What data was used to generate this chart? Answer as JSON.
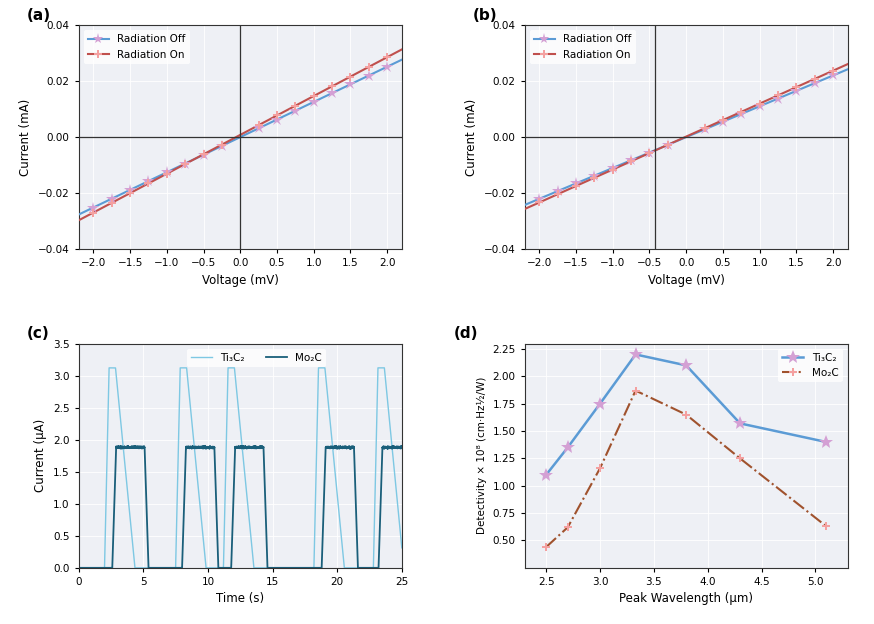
{
  "panel_a": {
    "title": "(a)",
    "xlabel": "Voltage (mV)",
    "ylabel": "Current (mA)",
    "xlim": [
      -2.2,
      2.2
    ],
    "ylim": [
      -0.04,
      0.04
    ],
    "xticks": [
      -2.0,
      -1.5,
      -1.0,
      -0.5,
      0.0,
      0.5,
      1.0,
      1.5,
      2.0
    ],
    "yticks": [
      -0.04,
      -0.02,
      0.0,
      0.02,
      0.04
    ],
    "off_slope": 0.01255,
    "off_intercept": 0.0,
    "on_slope": 0.01385,
    "on_intercept": 0.0008,
    "marker_x": [
      -2.0,
      -1.75,
      -1.5,
      -1.25,
      -1.0,
      -0.75,
      -0.5,
      -0.25,
      0.25,
      0.5,
      0.75,
      1.0,
      1.25,
      1.5,
      1.75,
      2.0
    ],
    "vline_x": 0.0,
    "hline_y": 0.0,
    "color_off": "#5b9bd5",
    "color_on": "#c0504d",
    "marker_color_off": "#d4a0d4",
    "marker_color_on": "#f4a0a0"
  },
  "panel_b": {
    "title": "(b)",
    "xlabel": "Voltage (mV)",
    "ylabel": "Current (mA)",
    "xlim": [
      -2.2,
      2.2
    ],
    "ylim": [
      -0.04,
      0.04
    ],
    "xticks": [
      -2.0,
      -1.5,
      -1.0,
      -0.5,
      0.0,
      0.5,
      1.0,
      1.5,
      2.0
    ],
    "yticks": [
      -0.04,
      -0.02,
      0.0,
      0.02,
      0.04
    ],
    "off_slope": 0.011,
    "off_intercept": 0.0,
    "on_slope": 0.01175,
    "on_intercept": 0.0002,
    "marker_x": [
      -2.0,
      -1.75,
      -1.5,
      -1.25,
      -1.0,
      -0.75,
      -0.5,
      -0.25,
      0.25,
      0.5,
      0.75,
      1.0,
      1.25,
      1.5,
      1.75,
      2.0
    ],
    "vline_x": -0.42,
    "hline_y": 0.0,
    "color_off": "#5b9bd5",
    "color_on": "#c0504d",
    "marker_color_off": "#d4a0d4",
    "marker_color_on": "#f4a0a0"
  },
  "panel_c": {
    "title": "(c)",
    "xlabel": "Time (s)",
    "ylabel": "Current (μA)",
    "xlim": [
      0,
      25
    ],
    "ylim": [
      0.0,
      3.5
    ],
    "xticks": [
      0,
      5,
      10,
      15,
      20,
      25
    ],
    "yticks": [
      0.0,
      0.5,
      1.0,
      1.5,
      2.0,
      2.5,
      3.0,
      3.5
    ],
    "color_ti3c2": "#7ec8e3",
    "color_mo2c": "#1a5f7a",
    "label_ti3c2": "Ti₃C₂",
    "label_mo2c": "Mo₂C",
    "ti_peak": 3.12,
    "mo_peak": 1.88,
    "ti_starts": [
      2.0,
      7.5,
      11.2,
      18.2,
      22.8
    ],
    "mo_starts": [
      2.6,
      8.0,
      11.8,
      18.8,
      23.2
    ]
  },
  "panel_d": {
    "title": "(d)",
    "xlabel": "Peak Wavelength (μm)",
    "ylabel": "Detectivity × 10⁸ (cm·Hz½/W)",
    "xlim": [
      2.3,
      5.3
    ],
    "ylim": [
      0.25,
      2.3
    ],
    "xticks": [
      2.5,
      3.0,
      3.5,
      4.0,
      4.5,
      5.0
    ],
    "yticks": [
      0.5,
      0.75,
      1.0,
      1.25,
      1.5,
      1.75,
      2.0,
      2.25
    ],
    "ti3c2_x": [
      2.5,
      2.7,
      3.0,
      3.33,
      3.8,
      4.3,
      5.1
    ],
    "ti3c2_y": [
      1.1,
      1.35,
      1.75,
      2.2,
      2.1,
      1.57,
      1.4
    ],
    "mo2c_x": [
      2.5,
      2.7,
      3.0,
      3.33,
      3.8,
      4.3,
      5.1
    ],
    "mo2c_y": [
      0.44,
      0.62,
      1.16,
      1.87,
      1.65,
      1.25,
      0.63
    ],
    "color_ti3c2": "#5b9bd5",
    "color_mo2c": "#a0522d",
    "marker_color_ti3c2": "#d4a0d4",
    "marker_color_mo2c": "#f4a0a0",
    "label_ti3c2": "Ti₃C₂",
    "label_mo2c": "Mo₂C"
  }
}
